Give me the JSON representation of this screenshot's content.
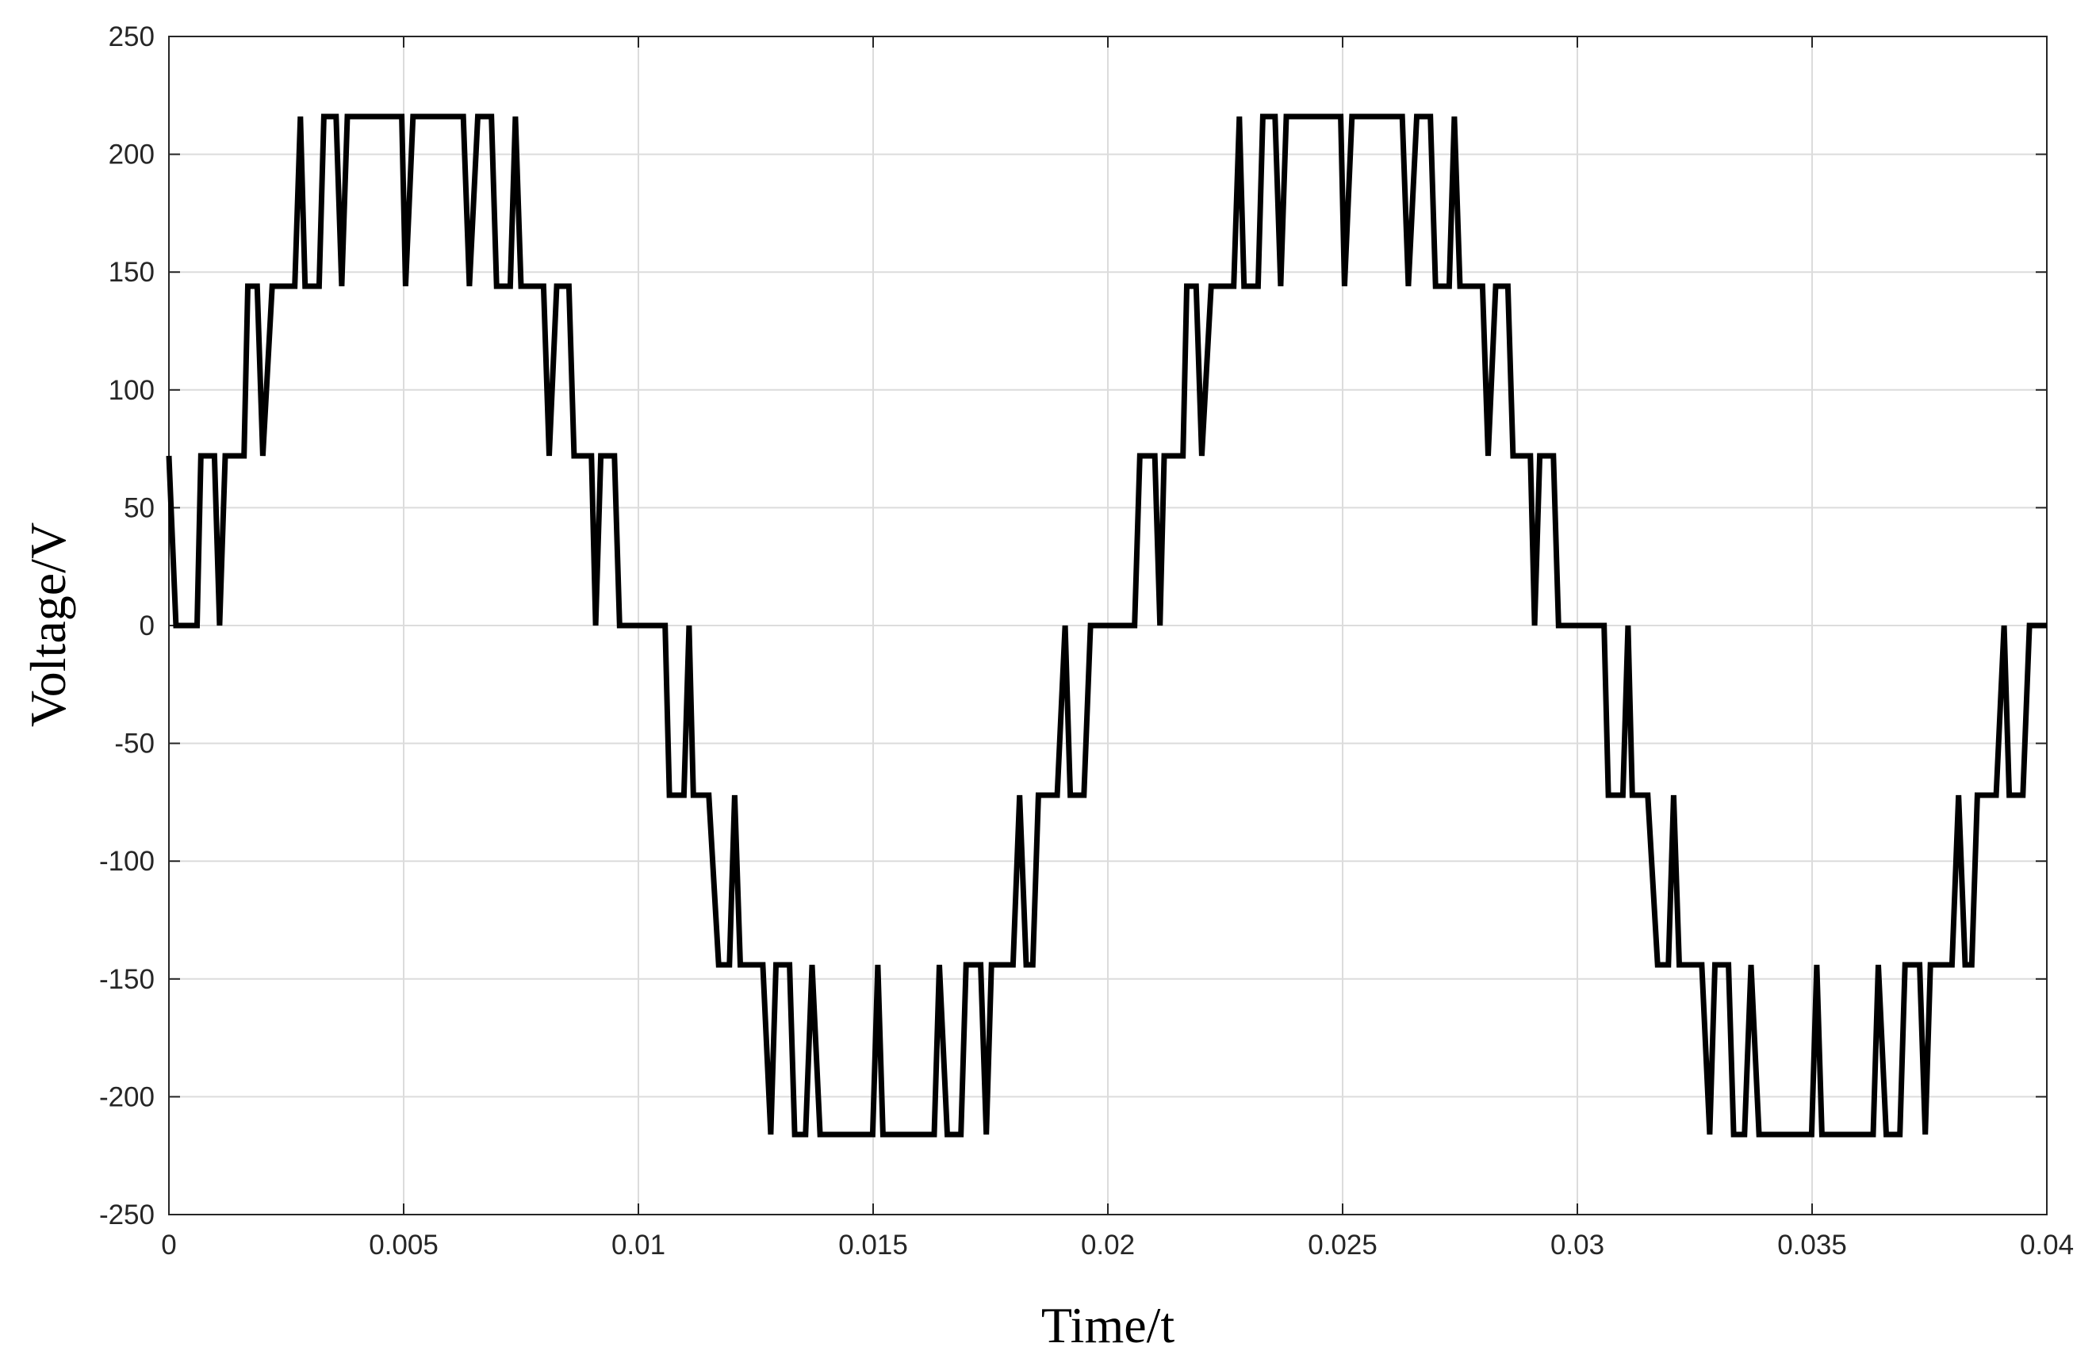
{
  "chart_data": {
    "type": "line",
    "x_label": "Time/t",
    "y_label": "Voltage/V",
    "color": "#000000",
    "grid": true,
    "xlim": [
      0,
      0.04
    ],
    "ylim": [
      -250,
      250
    ],
    "xticks": [
      0,
      0.005,
      0.01,
      0.015,
      0.02,
      0.025,
      0.03,
      0.035,
      0.04
    ],
    "yticks": [
      -250,
      -200,
      -150,
      -100,
      -50,
      0,
      50,
      100,
      150,
      200,
      250
    ],
    "x": [
      0,
      0.00015,
      0.0006,
      0.00068,
      0.00097,
      0.00108,
      0.0012,
      0.0016,
      0.00168,
      0.00188,
      0.002,
      0.0022,
      0.00268,
      0.0028,
      0.0029,
      0.0032,
      0.0033,
      0.00356,
      0.00368,
      0.0038,
      0.00496,
      0.00504,
      0.0052,
      0.00627,
      0.0064,
      0.00658,
      0.00687,
      0.00698,
      0.00727,
      0.00738,
      0.0075,
      0.00798,
      0.0081,
      0.00826,
      0.00852,
      0.00863,
      0.009,
      0.00909,
      0.0092,
      0.00949,
      0.0096,
      0.01057,
      0.01066,
      0.01097,
      0.01108,
      0.01117,
      0.0115,
      0.01171,
      0.01194,
      0.01205,
      0.01217,
      0.01265,
      0.01282,
      0.01293,
      0.01322,
      0.01333,
      0.01356,
      0.0137,
      0.01387,
      0.01499,
      0.0151,
      0.01521,
      0.0163,
      0.01641,
      0.01658,
      0.01687,
      0.01698,
      0.01729,
      0.01741,
      0.01752,
      0.01798,
      0.01812,
      0.01826,
      0.0184,
      0.01852,
      0.01892,
      0.01909,
      0.0192,
      0.01949,
      0.01963,
      0.02057,
      0.02068,
      0.021,
      0.02111,
      0.0212,
      0.0216,
      0.02168,
      0.02188,
      0.022,
      0.0222,
      0.02268,
      0.0228,
      0.0229,
      0.0232,
      0.0233,
      0.02356,
      0.02368,
      0.0238,
      0.02496,
      0.02504,
      0.0252,
      0.02627,
      0.0264,
      0.02658,
      0.02687,
      0.02698,
      0.02727,
      0.02738,
      0.0275,
      0.02798,
      0.0281,
      0.02826,
      0.02852,
      0.02863,
      0.029,
      0.02909,
      0.0292,
      0.02949,
      0.0296,
      0.03057,
      0.03066,
      0.03097,
      0.03108,
      0.03117,
      0.0315,
      0.03171,
      0.03194,
      0.03205,
      0.03217,
      0.03265,
      0.03282,
      0.03293,
      0.03322,
      0.03333,
      0.03356,
      0.0337,
      0.03387,
      0.03499,
      0.0351,
      0.03521,
      0.0363,
      0.03641,
      0.03658,
      0.03687,
      0.03698,
      0.03729,
      0.03741,
      0.03752,
      0.03798,
      0.03812,
      0.03826,
      0.0384,
      0.03852,
      0.03892,
      0.03909,
      0.0392,
      0.03949,
      0.03963,
      0.04
    ],
    "values": [
      72,
      0,
      0,
      72,
      72,
      0,
      72,
      72,
      144,
      144,
      72,
      144,
      144,
      216,
      144,
      144,
      216,
      216,
      144,
      216,
      216,
      144,
      216,
      216,
      144,
      216,
      216,
      144,
      144,
      216,
      144,
      144,
      72,
      144,
      144,
      72,
      72,
      0,
      72,
      72,
      0,
      0,
      -72,
      -72,
      0,
      -72,
      -72,
      -144,
      -144,
      -72,
      -144,
      -144,
      -216,
      -144,
      -144,
      -216,
      -216,
      -144,
      -216,
      -216,
      -144,
      -216,
      -216,
      -144,
      -216,
      -216,
      -144,
      -144,
      -216,
      -144,
      -144,
      -72,
      -144,
      -144,
      -72,
      -72,
      0,
      -72,
      -72,
      0,
      0,
      72,
      72,
      0,
      72,
      72,
      144,
      144,
      72,
      144,
      144,
      216,
      144,
      144,
      216,
      216,
      144,
      216,
      216,
      144,
      216,
      216,
      144,
      216,
      216,
      144,
      144,
      216,
      144,
      144,
      72,
      144,
      144,
      72,
      72,
      0,
      72,
      72,
      0,
      0,
      -72,
      -72,
      0,
      -72,
      -72,
      -144,
      -144,
      -72,
      -144,
      -144,
      -216,
      -144,
      -144,
      -216,
      -216,
      -144,
      -216,
      -216,
      -144,
      -216,
      -216,
      -144,
      -216,
      -216,
      -144,
      -144,
      -216,
      -144,
      -144,
      -72,
      -144,
      -144,
      -72,
      -72,
      0,
      -72,
      -72,
      0,
      0
    ]
  }
}
